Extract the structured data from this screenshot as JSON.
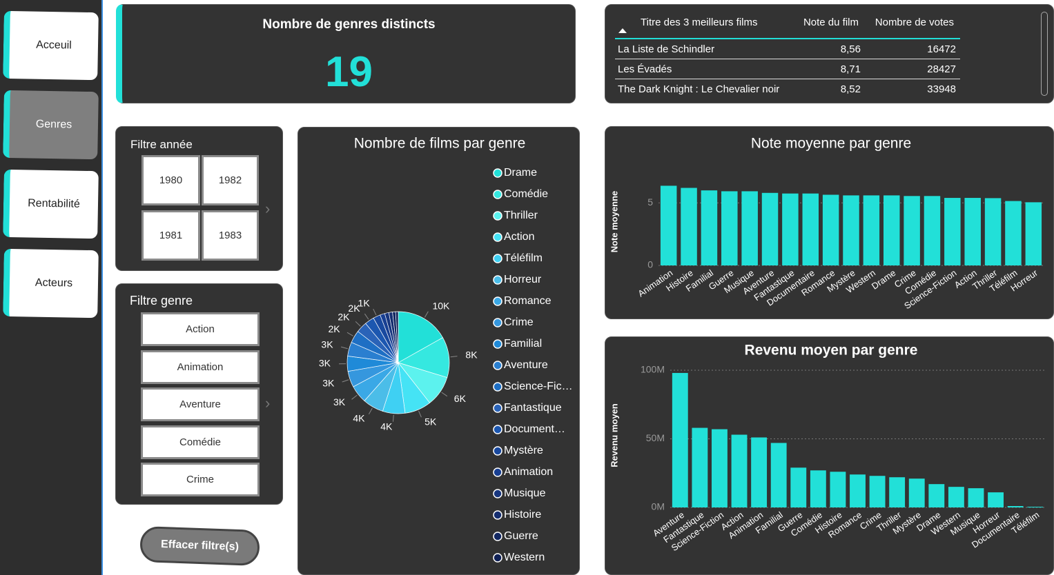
{
  "nav": {
    "items": [
      "Acceuil",
      "Genres",
      "Rentabilité",
      "Acteurs"
    ],
    "active": 1
  },
  "kpi": {
    "title": "Nombre de genres distincts",
    "value": 19
  },
  "top_films": {
    "columns": [
      "Titre des 3 meilleurs films",
      "Note du film",
      "Nombre de votes"
    ],
    "rows": [
      [
        "La Liste de Schindler",
        "8,56",
        "16472"
      ],
      [
        "Les Évadés",
        "8,71",
        "28427"
      ],
      [
        "The Dark Knight : Le Chevalier noir",
        "8,52",
        "33948"
      ]
    ]
  },
  "year_filter": {
    "title": "Filtre année",
    "years": [
      1980,
      1981,
      1982,
      1983
    ]
  },
  "genre_filter": {
    "title": "Filtre genre",
    "items": [
      "Action",
      "Animation",
      "Aventure",
      "Comédie",
      "Crime"
    ]
  },
  "clear_button": "Effacer filtre(s)",
  "chart_data": [
    {
      "type": "pie",
      "title": "Nombre de films par genre",
      "categories": [
        "Drame",
        "Comédie",
        "Thriller",
        "Action",
        "Téléfilm",
        "Horreur",
        "Romance",
        "Crime",
        "Familial",
        "Aventure",
        "Science-Fic…",
        "Fantastique",
        "Document…",
        "Mystère",
        "Animation",
        "Musique",
        "Histoire",
        "Guerre",
        "Western"
      ],
      "values": [
        10200,
        7800,
        5900,
        5100,
        4300,
        4000,
        3400,
        3100,
        2900,
        2700,
        2400,
        2100,
        1800,
        1400,
        900,
        800,
        700,
        600,
        500
      ],
      "value_labels": [
        "10K",
        "8K",
        "6K",
        "5K",
        "4K",
        "4K",
        "3K",
        "3K",
        "3K",
        "3K",
        "2K",
        "2K",
        "2K",
        "1K",
        null,
        null,
        null,
        null,
        null
      ],
      "colors": [
        "#22e0d8",
        "#35e8e0",
        "#5cf2ee",
        "#45e3f5",
        "#3fd0f3",
        "#4bbde8",
        "#3aa8e6",
        "#3597de",
        "#1f8ad8",
        "#2a7fd0",
        "#1e6fc4",
        "#2a63b8",
        "#1c57b0",
        "#19499f",
        "#183f92",
        "#17367f",
        "#152e70",
        "#132862",
        "#102156"
      ]
    },
    {
      "type": "bar",
      "title": "Note moyenne par genre",
      "y_label": "Note moyenne",
      "color": "#22e0d8",
      "grid": true,
      "categories": [
        "Animation",
        "Histoire",
        "Familial",
        "Guerre",
        "Musique",
        "Aventure",
        "Fantastique",
        "Documentaire",
        "Romance",
        "Mystère",
        "Western",
        "Drame",
        "Crime",
        "Comédie",
        "Science-Fiction",
        "Action",
        "Thriller",
        "Téléfilm",
        "Horreur"
      ],
      "values": [
        6.37,
        6.2,
        6.0,
        5.93,
        5.93,
        5.8,
        5.75,
        5.75,
        5.65,
        5.6,
        5.6,
        5.6,
        5.55,
        5.55,
        5.4,
        5.4,
        5.38,
        5.15,
        5.05
      ],
      "ylim": [
        0,
        7
      ],
      "yticks": [
        0,
        5
      ]
    },
    {
      "type": "bar",
      "title": "Revenu moyen par genre",
      "y_label": "Revenu moyen",
      "color": "#22e0d8",
      "grid": true,
      "categories": [
        "Aventure",
        "Fantastique",
        "Science-Fiction",
        "Action",
        "Animation",
        "Familial",
        "Guerre",
        "Comédie",
        "Histoire",
        "Romance",
        "Crime",
        "Thriller",
        "Mystère",
        "Drame",
        "Western",
        "Musique",
        "Horreur",
        "Documentaire",
        "Téléfilm"
      ],
      "values": [
        98000000,
        58000000,
        57000000,
        53000000,
        51000000,
        47000000,
        29000000,
        27000000,
        26000000,
        24000000,
        23000000,
        22000000,
        21000000,
        17000000,
        15000000,
        14000000,
        11000000,
        1000000,
        500000
      ],
      "ylim": [
        0,
        105000000
      ],
      "yticks": [
        {
          "value": 0,
          "label": "0M"
        },
        {
          "value": 50000000,
          "label": "50M"
        },
        {
          "value": 100000000,
          "label": "100M"
        }
      ]
    }
  ]
}
